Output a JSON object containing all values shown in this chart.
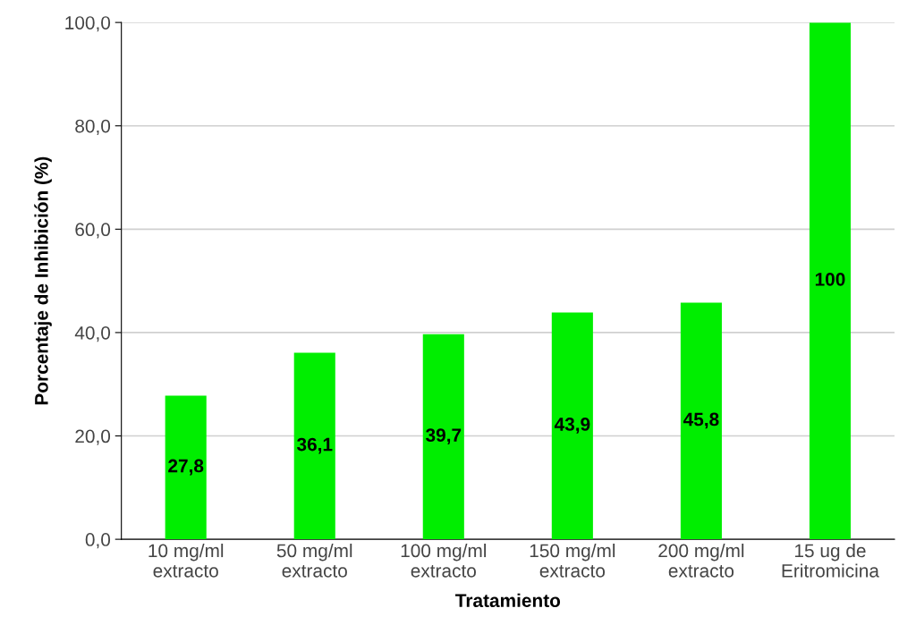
{
  "chart_data": {
    "type": "bar",
    "xlabel": "Tratamiento",
    "ylabel": "Porcentaje de Inhibición (%)",
    "categories": [
      "10 mg/ml\nextracto",
      "50 mg/ml\nextracto",
      "100 mg/ml\nextracto",
      "150 mg/ml\nextracto",
      "200 mg/ml\nextracto",
      "15 ug de\nEritromicina"
    ],
    "values": [
      27.8,
      36.1,
      39.7,
      43.9,
      45.8,
      100
    ],
    "value_labels": [
      "27,8",
      "36,1",
      "39,7",
      "43,9",
      "45,8",
      "100"
    ],
    "color": "#00ee00",
    "ylim": [
      0,
      100
    ],
    "yticks": [
      {
        "value": 0,
        "label": "0,0"
      },
      {
        "value": 20,
        "label": "20,0"
      },
      {
        "value": 40,
        "label": "40,0"
      },
      {
        "value": 60,
        "label": "60,0"
      },
      {
        "value": 80,
        "label": "80,0"
      },
      {
        "value": 100,
        "label": "100,0"
      }
    ],
    "grid": "y",
    "legend": false
  }
}
